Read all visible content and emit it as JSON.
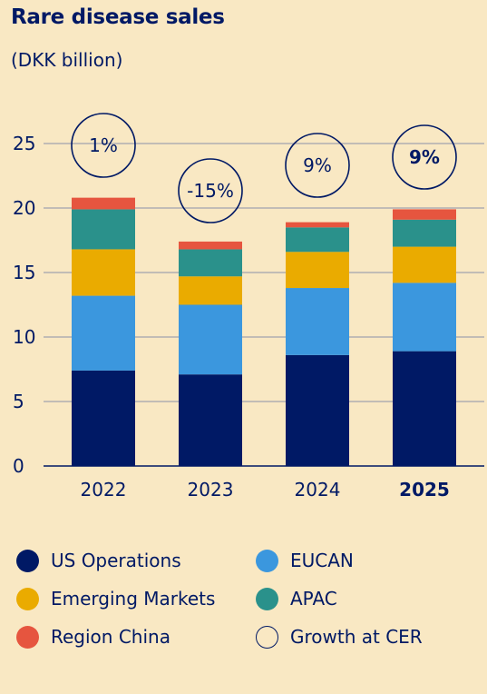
{
  "header": {
    "title": "Rare disease sales",
    "subtitle": "(DKK billion)"
  },
  "colors": {
    "text": "#001965",
    "grid": "#8a8fa8",
    "background": "#f9e8c3",
    "us_operations": "#001965",
    "eucan": "#3b97de",
    "emerging_markets": "#eaab00",
    "apac": "#2a918b",
    "region_china": "#e6553f"
  },
  "chart_data": {
    "type": "bar",
    "stacked": true,
    "categories": [
      "2022",
      "2023",
      "2024",
      "2025"
    ],
    "ylim": [
      0,
      25
    ],
    "yticks": [
      0,
      5,
      10,
      15,
      20,
      25
    ],
    "grid": "horizontal",
    "series": [
      {
        "name": "US Operations",
        "color": "#001965",
        "values": [
          7.4,
          7.1,
          8.6,
          8.9
        ]
      },
      {
        "name": "EUCAN",
        "color": "#3b97de",
        "values": [
          5.8,
          5.4,
          5.2,
          5.3
        ]
      },
      {
        "name": "Emerging Markets",
        "color": "#eaab00",
        "values": [
          3.6,
          2.2,
          2.8,
          2.8
        ]
      },
      {
        "name": "APAC",
        "color": "#2a918b",
        "values": [
          3.1,
          2.1,
          1.9,
          2.1
        ]
      },
      {
        "name": "Region China",
        "color": "#e6553f",
        "values": [
          0.9,
          0.6,
          0.4,
          0.8
        ]
      }
    ],
    "growth_at_cer": [
      "1%",
      "-15%",
      "9%",
      "9%"
    ],
    "highlight_category": "2025"
  },
  "legend": [
    {
      "label": "US Operations",
      "color": "#001965",
      "style": "filled"
    },
    {
      "label": "EUCAN",
      "color": "#3b97de",
      "style": "filled"
    },
    {
      "label": "Emerging Markets",
      "color": "#eaab00",
      "style": "filled"
    },
    {
      "label": "APAC",
      "color": "#2a918b",
      "style": "filled"
    },
    {
      "label": "Region China",
      "color": "#e6553f",
      "style": "filled"
    },
    {
      "label": "Growth at CER",
      "color": "#001965",
      "style": "outline"
    }
  ]
}
